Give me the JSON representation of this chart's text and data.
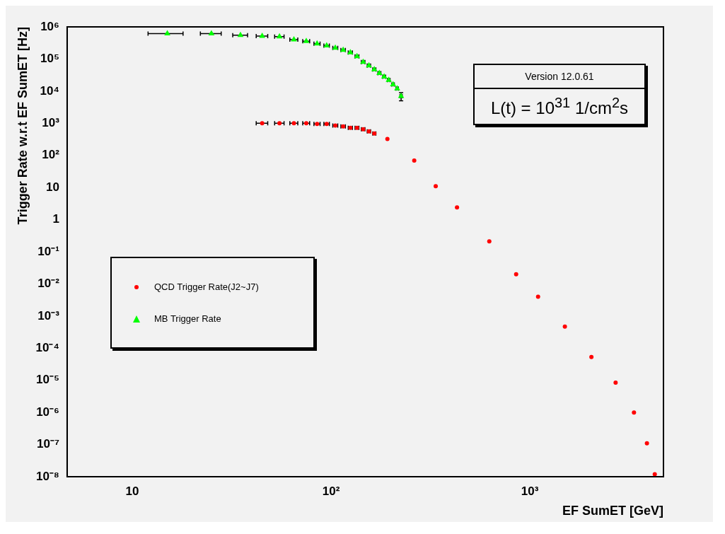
{
  "chart_data": {
    "type": "scatter",
    "xlabel": "EF SumET [GeV]",
    "ylabel": "Trigger Rate w.r.t EF SumET [Hz]",
    "log": "xy",
    "xlim": [
      4.7,
      4700
    ],
    "xticks": [
      10,
      {
        "value": 100,
        "label": "10²"
      },
      {
        "value": 1000,
        "label": "10³"
      }
    ],
    "ylim": [
      1e-08,
      1000000
    ],
    "yticks": [
      {
        "value": 1e-08,
        "label": "10⁻⁸"
      },
      {
        "value": 1e-07,
        "label": "10⁻⁷"
      },
      {
        "value": 1e-06,
        "label": "10⁻⁶"
      },
      {
        "value": 1e-05,
        "label": "10⁻⁵"
      },
      {
        "value": 0.0001,
        "label": "10⁻⁴"
      },
      {
        "value": 0.001,
        "label": "10⁻³"
      },
      {
        "value": 0.01,
        "label": "10⁻²"
      },
      {
        "value": 0.1,
        "label": "10⁻¹"
      },
      1,
      10,
      {
        "value": 100,
        "label": "10²"
      },
      {
        "value": 1000,
        "label": "10³"
      },
      {
        "value": 10000,
        "label": "10⁴"
      },
      {
        "value": 100000,
        "label": "10⁵"
      },
      {
        "value": 1000000,
        "label": "10⁶"
      }
    ],
    "grid": false,
    "legend": "left",
    "annotations": [
      "Version 12.0.61",
      "L(t) = 10$^{31}$ 1/cm$^{2}$s"
    ],
    "series": [
      {
        "name": "QCD Trigger Rate(J2~J7)",
        "color": "#ff0000",
        "marker": "circle",
        "x": [
          45,
          55,
          65,
          75,
          85,
          95,
          105,
          115,
          125,
          135,
          145,
          155,
          165,
          192,
          262,
          336,
          430,
          625,
          853,
          1100,
          1500,
          2040,
          2700,
          3340,
          3880,
          4250
        ],
        "values": [
          1000,
          1000,
          1000,
          1000,
          950,
          950,
          850,
          800,
          720,
          720,
          650,
          560,
          480,
          325,
          69,
          11,
          2.4,
          0.21,
          0.02,
          0.004,
          0.00047,
          5.3e-05,
          8.5e-06,
          1e-06,
          1.1e-07,
          1.2e-08
        ],
        "xerrors": [
          3,
          3,
          3,
          3,
          3,
          3,
          3,
          3,
          3,
          3,
          3,
          3,
          3,
          null,
          null,
          null,
          null,
          null,
          null,
          null,
          null,
          null,
          null,
          null,
          null,
          null
        ]
      },
      {
        "name": "MB Trigger Rate",
        "color": "#00ff00",
        "marker": "triangle",
        "x": [
          15,
          25,
          35,
          45,
          55,
          65,
          75,
          85,
          95,
          105,
          115,
          125,
          135,
          145,
          155,
          165,
          175,
          185,
          195,
          205,
          215,
          225
        ],
        "values": [
          620000,
          620000,
          550000,
          520000,
          500000,
          400000,
          360000,
          300000,
          260000,
          220000,
          190000,
          160000,
          120000,
          80000,
          62000,
          47000,
          36000,
          28000,
          22000,
          16000,
          12000,
          7000
        ],
        "xerrors": [
          3,
          3,
          3,
          3,
          3,
          3,
          3,
          3,
          3,
          3,
          3,
          3,
          3,
          3,
          3,
          3,
          3,
          3,
          3,
          3,
          3,
          3
        ],
        "errors": [
          null,
          null,
          null,
          null,
          null,
          null,
          null,
          null,
          null,
          null,
          null,
          null,
          null,
          null,
          null,
          null,
          null,
          null,
          null,
          null,
          null,
          [
            5000,
            9000
          ]
        ]
      }
    ]
  }
}
